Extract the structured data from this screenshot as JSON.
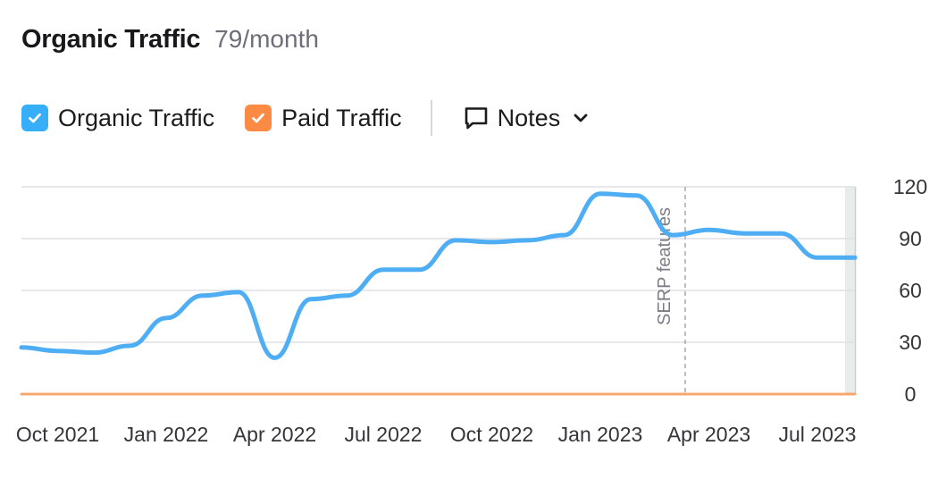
{
  "header": {
    "title": "Organic Traffic",
    "subtitle": "79/month"
  },
  "legend": {
    "organic_label": "Organic Traffic",
    "paid_label": "Paid Traffic",
    "notes_label": "Notes",
    "organic_checked": true,
    "paid_checked": true
  },
  "icons": {
    "checkbox": "checkmark-icon",
    "notes": "speech-bubble-icon",
    "dropdown": "chevron-down-icon"
  },
  "colors": {
    "organic": "#4faef3",
    "paid": "#fa8f45",
    "organic_checkbox": "#37aef8",
    "paid_checkbox": "#fb8b44",
    "grid": "#dfe0e6",
    "annotation": "#a6a8b1",
    "tick_text": "#34353a"
  },
  "chart_data": {
    "type": "line",
    "x": [
      "2021-09",
      "2021-10",
      "2021-11",
      "2021-12",
      "2022-01",
      "2022-02",
      "2022-03",
      "2022-04",
      "2022-05",
      "2022-06",
      "2022-07",
      "2022-08",
      "2022-09",
      "2022-10",
      "2022-11",
      "2022-12",
      "2023-01",
      "2023-02",
      "2023-03",
      "2023-04",
      "2023-05",
      "2023-06",
      "2023-07",
      "2023-08"
    ],
    "series": [
      {
        "name": "Organic Traffic",
        "values": [
          27,
          25,
          24,
          28,
          44,
          57,
          59,
          21,
          55,
          57,
          72,
          72,
          89,
          88,
          89,
          92,
          116,
          115,
          92,
          95,
          93,
          93,
          79,
          79
        ]
      },
      {
        "name": "Paid Traffic",
        "values": [
          0,
          0,
          0,
          0,
          0,
          0,
          0,
          0,
          0,
          0,
          0,
          0,
          0,
          0,
          0,
          0,
          0,
          0,
          0,
          0,
          0,
          0,
          0,
          0
        ]
      }
    ],
    "x_ticks": [
      "Oct 2021",
      "Jan 2022",
      "Apr 2022",
      "Jul 2022",
      "Oct 2022",
      "Jan 2023",
      "Apr 2023",
      "Jul 2023"
    ],
    "x_tick_positions": [
      "2021-10",
      "2022-01",
      "2022-04",
      "2022-07",
      "2022-10",
      "2023-01",
      "2023-04",
      "2023-07"
    ],
    "y_ticks": [
      0,
      30,
      60,
      90,
      120
    ],
    "ylim": [
      0,
      120
    ],
    "y_axis_side": "right",
    "grid": true,
    "annotations": [
      {
        "label": "SERP features",
        "x": "2023-03"
      }
    ]
  }
}
